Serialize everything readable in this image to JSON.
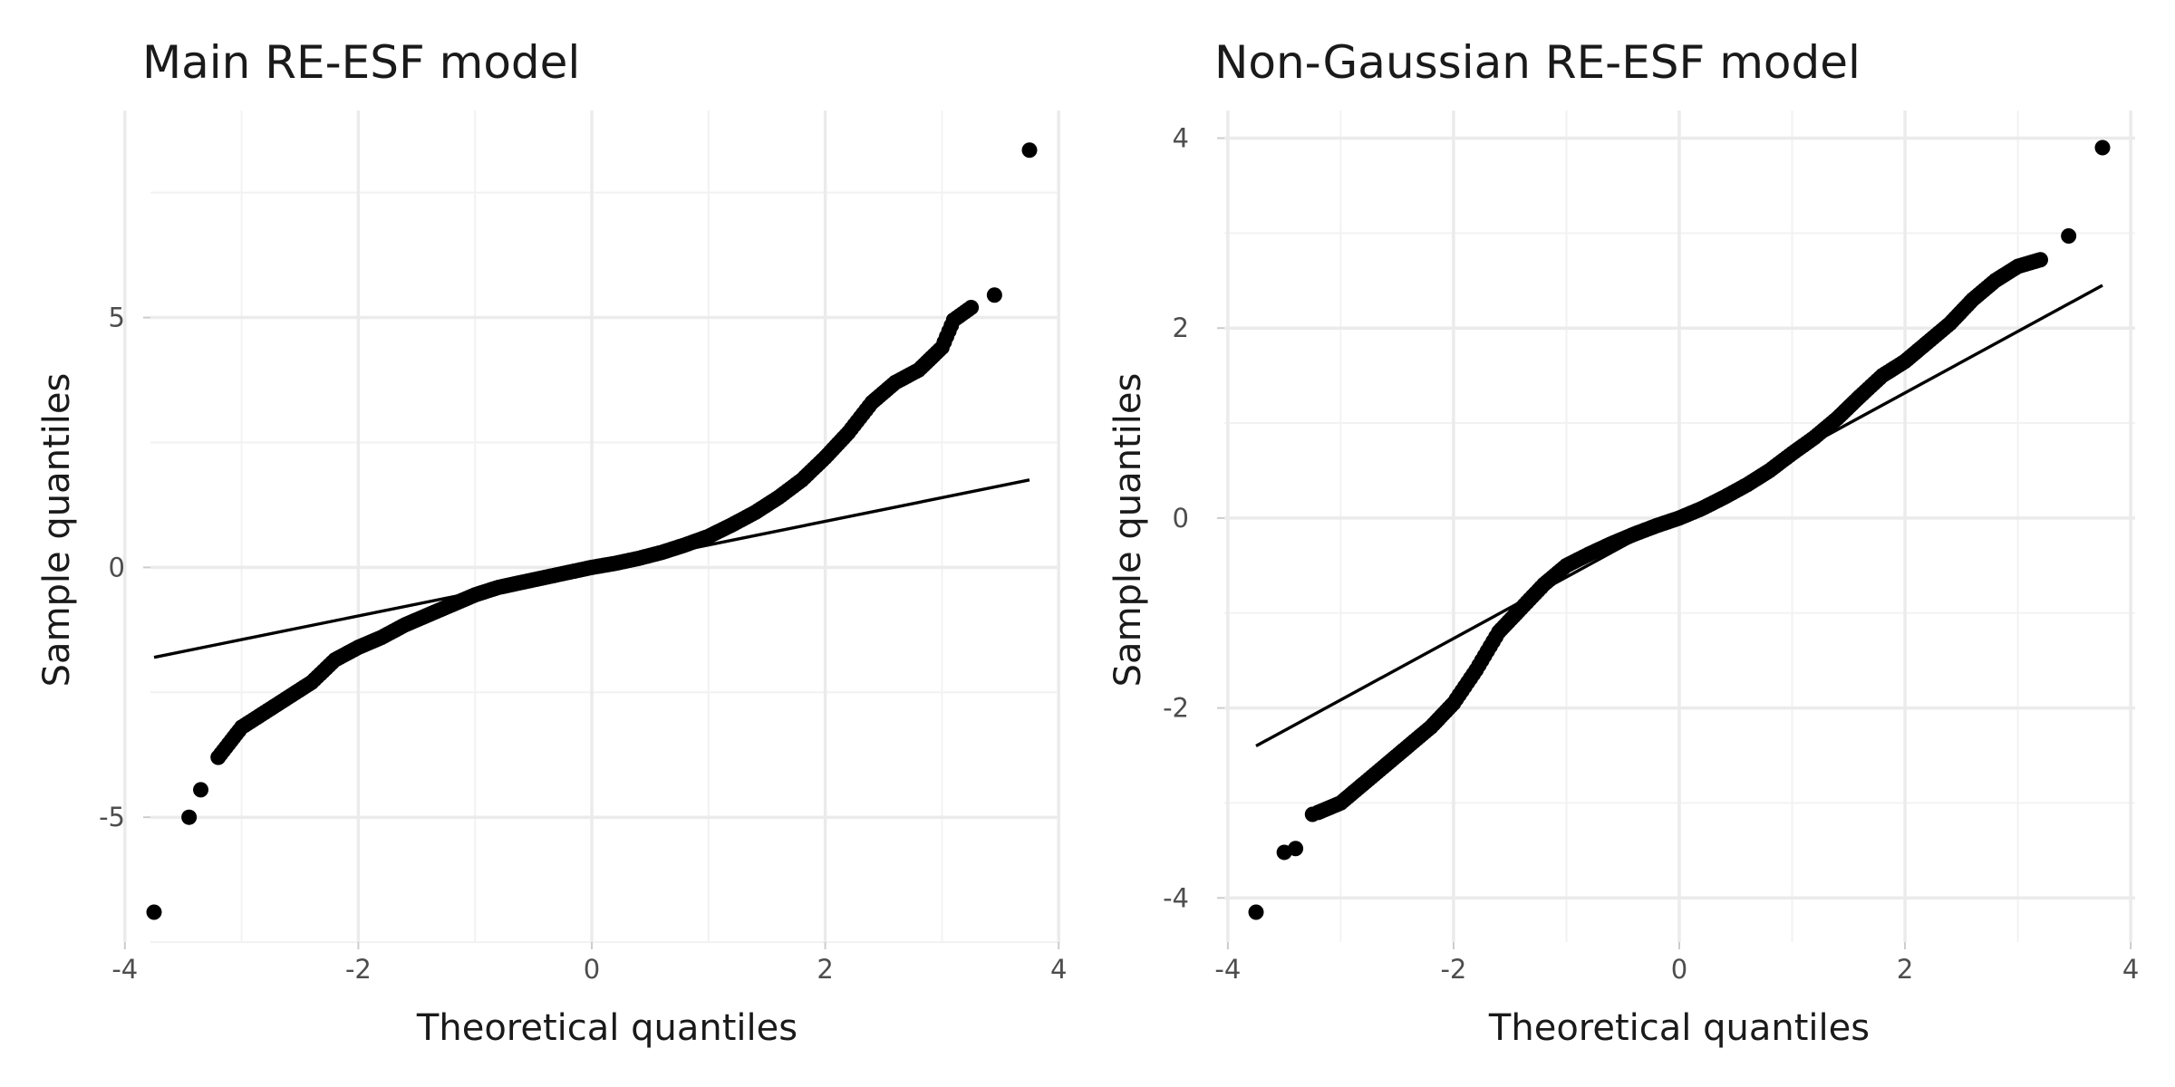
{
  "chart_data": [
    {
      "type": "scatter",
      "title": "Main RE-ESF model",
      "xlabel": "Theoretical quantiles",
      "ylabel": "Sample quantiles",
      "xlim": [
        -3.75,
        3.75
      ],
      "ylim": [
        -6.9,
        8.4
      ],
      "xticks": [
        -4,
        -2,
        0,
        2,
        4
      ],
      "xtick_labels": [
        "-4",
        "-2",
        "0",
        "2",
        "4"
      ],
      "yticks": [
        -5,
        0,
        5
      ],
      "ytick_labels": [
        "-5",
        "0",
        "5"
      ],
      "grid": true,
      "reference_line": {
        "x": [
          -3.75,
          3.75
        ],
        "y": [
          -1.8,
          1.75
        ]
      },
      "curve": [
        [
          -3.2,
          -3.8
        ],
        [
          -3.0,
          -3.2
        ],
        [
          -2.6,
          -2.6
        ],
        [
          -2.4,
          -2.3
        ],
        [
          -2.2,
          -1.85
        ],
        [
          -2.0,
          -1.6
        ],
        [
          -1.8,
          -1.4
        ],
        [
          -1.6,
          -1.15
        ],
        [
          -1.4,
          -0.95
        ],
        [
          -1.2,
          -0.75
        ],
        [
          -1.0,
          -0.55
        ],
        [
          -0.8,
          -0.4
        ],
        [
          -0.6,
          -0.3
        ],
        [
          -0.4,
          -0.2
        ],
        [
          -0.2,
          -0.1
        ],
        [
          0.0,
          0.0
        ],
        [
          0.2,
          0.08
        ],
        [
          0.4,
          0.18
        ],
        [
          0.6,
          0.3
        ],
        [
          0.8,
          0.45
        ],
        [
          1.0,
          0.62
        ],
        [
          1.2,
          0.85
        ],
        [
          1.4,
          1.1
        ],
        [
          1.6,
          1.4
        ],
        [
          1.8,
          1.75
        ],
        [
          2.0,
          2.2
        ],
        [
          2.2,
          2.7
        ],
        [
          2.4,
          3.3
        ],
        [
          2.6,
          3.7
        ],
        [
          2.8,
          3.95
        ],
        [
          3.0,
          4.4
        ],
        [
          3.1,
          4.95
        ],
        [
          3.25,
          5.2
        ]
      ],
      "points": [
        [
          -3.75,
          -6.9
        ],
        [
          -3.45,
          -5.0
        ],
        [
          -3.35,
          -4.45
        ],
        [
          -3.2,
          -3.8
        ],
        [
          3.45,
          5.45
        ],
        [
          3.75,
          8.35
        ]
      ],
      "color": "#000000"
    },
    {
      "type": "scatter",
      "title": "Non-Gaussian RE-ESF model",
      "xlabel": "Theoretical quantiles",
      "ylabel": "Sample quantiles",
      "xlim": [
        -3.75,
        3.75
      ],
      "ylim": [
        -4.15,
        3.9
      ],
      "xticks": [
        -4,
        -2,
        0,
        2,
        4
      ],
      "xtick_labels": [
        "-4",
        "-2",
        "0",
        "2",
        "4"
      ],
      "yticks": [
        -4,
        -2,
        0,
        2,
        4
      ],
      "ytick_labels": [
        "-4",
        "-2",
        "0",
        "2",
        "4"
      ],
      "grid": true,
      "reference_line": {
        "x": [
          -3.75,
          3.75
        ],
        "y": [
          -2.4,
          2.45
        ]
      },
      "curve": [
        [
          -3.2,
          -3.1
        ],
        [
          -3.0,
          -3.0
        ],
        [
          -2.8,
          -2.8
        ],
        [
          -2.6,
          -2.6
        ],
        [
          -2.4,
          -2.4
        ],
        [
          -2.2,
          -2.2
        ],
        [
          -2.0,
          -1.95
        ],
        [
          -1.8,
          -1.6
        ],
        [
          -1.6,
          -1.2
        ],
        [
          -1.4,
          -0.95
        ],
        [
          -1.2,
          -0.7
        ],
        [
          -1.0,
          -0.5
        ],
        [
          -0.8,
          -0.38
        ],
        [
          -0.6,
          -0.27
        ],
        [
          -0.4,
          -0.17
        ],
        [
          -0.2,
          -0.08
        ],
        [
          0.0,
          0.0
        ],
        [
          0.2,
          0.1
        ],
        [
          0.4,
          0.22
        ],
        [
          0.6,
          0.35
        ],
        [
          0.8,
          0.5
        ],
        [
          1.0,
          0.68
        ],
        [
          1.2,
          0.85
        ],
        [
          1.4,
          1.05
        ],
        [
          1.6,
          1.28
        ],
        [
          1.8,
          1.5
        ],
        [
          2.0,
          1.65
        ],
        [
          2.2,
          1.85
        ],
        [
          2.4,
          2.05
        ],
        [
          2.6,
          2.3
        ],
        [
          2.8,
          2.5
        ],
        [
          3.0,
          2.65
        ],
        [
          3.2,
          2.72
        ]
      ],
      "points": [
        [
          -3.75,
          -4.15
        ],
        [
          -3.5,
          -3.52
        ],
        [
          -3.4,
          -3.48
        ],
        [
          -3.25,
          -3.12
        ],
        [
          3.45,
          2.97
        ],
        [
          3.75,
          3.9
        ]
      ],
      "color": "#000000"
    }
  ]
}
